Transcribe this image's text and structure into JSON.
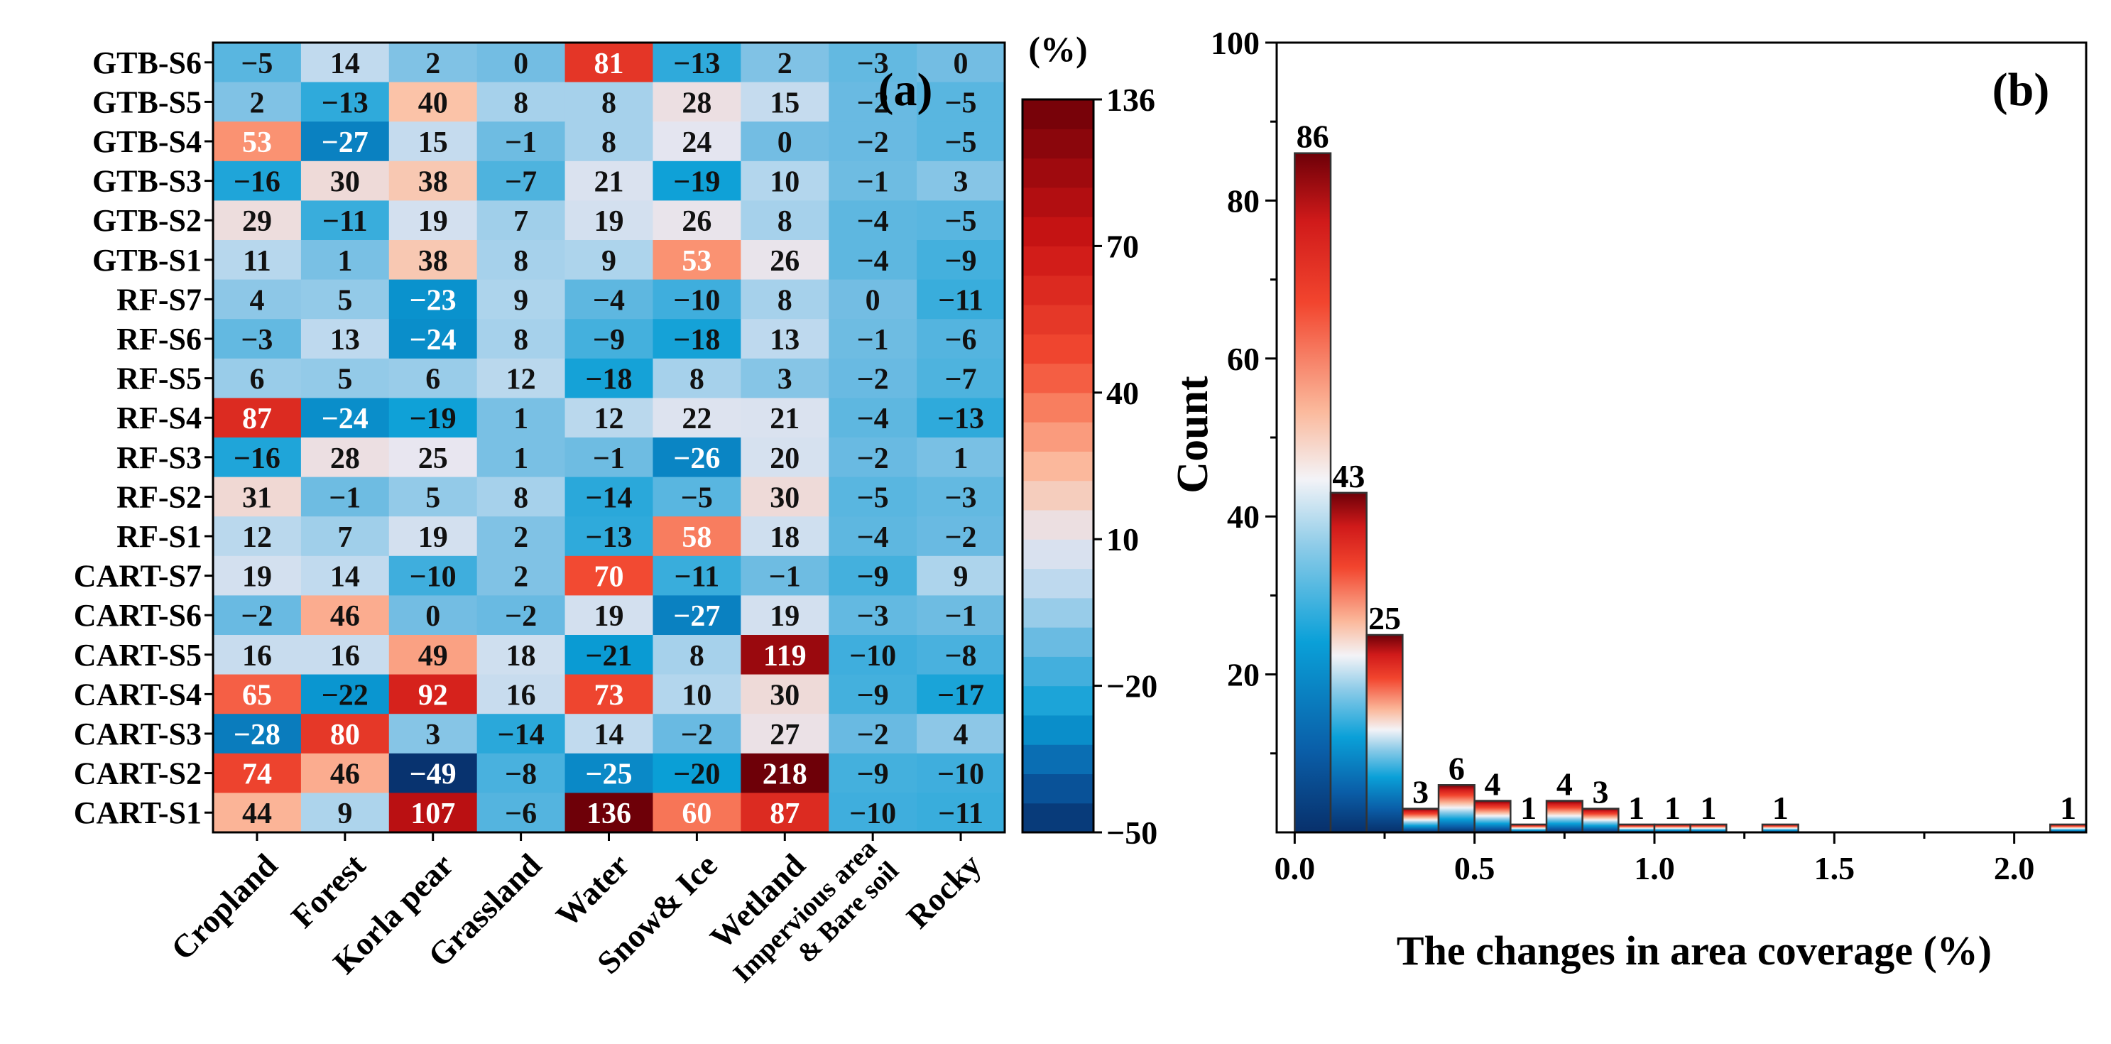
{
  "chart_data": [
    {
      "type": "heatmap",
      "panel_label": "(a)",
      "rows": [
        "GTB-S6",
        "GTB-S5",
        "GTB-S4",
        "GTB-S3",
        "GTB-S2",
        "GTB-S1",
        "RF-S7",
        "RF-S6",
        "RF-S5",
        "RF-S4",
        "RF-S3",
        "RF-S2",
        "RF-S1",
        "CART-S7",
        "CART-S6",
        "CART-S5",
        "CART-S4",
        "CART-S3",
        "CART-S2",
        "CART-S1"
      ],
      "columns": [
        "Cropland",
        "Forest",
        "Korla pear",
        "Grassland",
        "Water",
        "Snow& Ice",
        "Wetland",
        "Impervious area & Bare soil",
        "Rocky"
      ],
      "column_label_lines": [
        [
          "Cropland"
        ],
        [
          "Forest"
        ],
        [
          "Korla pear"
        ],
        [
          "Grassland"
        ],
        [
          "Water"
        ],
        [
          "Snow& Ice"
        ],
        [
          "Wetland"
        ],
        [
          "Impervious area",
          "& Bare soil"
        ],
        [
          "Rocky"
        ]
      ],
      "values": [
        [
          -5,
          14,
          2,
          0,
          81,
          -13,
          2,
          -3,
          0
        ],
        [
          2,
          -13,
          40,
          8,
          8,
          28,
          15,
          -2,
          -5
        ],
        [
          53,
          -27,
          15,
          -1,
          8,
          24,
          0,
          -2,
          -5
        ],
        [
          -16,
          30,
          38,
          -7,
          21,
          -19,
          10,
          -1,
          3
        ],
        [
          29,
          -11,
          19,
          7,
          19,
          26,
          8,
          -4,
          -5
        ],
        [
          11,
          1,
          38,
          8,
          9,
          53,
          26,
          -4,
          -9
        ],
        [
          4,
          5,
          -23,
          9,
          -4,
          -10,
          8,
          0,
          -11
        ],
        [
          -3,
          13,
          -24,
          8,
          -9,
          -18,
          13,
          -1,
          -6
        ],
        [
          6,
          5,
          6,
          12,
          -18,
          8,
          3,
          -2,
          -7
        ],
        [
          87,
          -24,
          -19,
          1,
          12,
          22,
          21,
          -4,
          -13
        ],
        [
          -16,
          28,
          25,
          1,
          -1,
          -26,
          20,
          -2,
          1
        ],
        [
          31,
          -1,
          5,
          8,
          -14,
          -5,
          30,
          -5,
          -3
        ],
        [
          12,
          7,
          19,
          2,
          -13,
          58,
          18,
          -4,
          -2
        ],
        [
          19,
          14,
          -10,
          2,
          70,
          -11,
          -1,
          -9,
          9
        ],
        [
          -2,
          46,
          0,
          -2,
          19,
          -27,
          19,
          -3,
          -1
        ],
        [
          16,
          16,
          49,
          18,
          -21,
          8,
          119,
          -10,
          -8
        ],
        [
          65,
          -22,
          92,
          16,
          73,
          10,
          30,
          -9,
          -17
        ],
        [
          -28,
          80,
          3,
          -14,
          14,
          -2,
          27,
          -2,
          4
        ],
        [
          74,
          46,
          -49,
          -8,
          -25,
          -20,
          218,
          -9,
          -10
        ],
        [
          44,
          9,
          107,
          -6,
          136,
          60,
          87,
          -10,
          -11
        ]
      ],
      "colorbar": {
        "title": "(%)",
        "min": -50,
        "max": 136,
        "ticks": [
          136,
          70,
          40,
          10,
          -20,
          -50
        ],
        "tick_labels": [
          "136",
          "70",
          "40",
          "10",
          "−20",
          "−50"
        ],
        "anchors": [
          {
            "value": -50,
            "color": "#08306b"
          },
          {
            "value": -35,
            "color": "#0a5ea8"
          },
          {
            "value": -20,
            "color": "#0a9fd6"
          },
          {
            "value": 0,
            "color": "#73bde3"
          },
          {
            "value": 10,
            "color": "#b3d6ed"
          },
          {
            "value": 25,
            "color": "#e8e6f0"
          },
          {
            "value": 40,
            "color": "#fbc3a8"
          },
          {
            "value": 55,
            "color": "#fa8a6a"
          },
          {
            "value": 70,
            "color": "#f24a32"
          },
          {
            "value": 100,
            "color": "#cc1414"
          },
          {
            "value": 136,
            "color": "#6e0008"
          }
        ]
      }
    },
    {
      "type": "bar",
      "panel_label": "(b)",
      "xlabel": "The changes in area coverage (%)",
      "ylabel": "Count",
      "xlim": [
        -0.05,
        2.2
      ],
      "ylim": [
        0,
        100
      ],
      "xticks": [
        0.0,
        0.5,
        1.0,
        1.5,
        2.0
      ],
      "xtick_labels": [
        "0.0",
        "0.5",
        "1.0",
        "1.5",
        "2.0"
      ],
      "yticks": [
        20,
        40,
        60,
        80,
        100
      ],
      "ytick_labels": [
        "20",
        "40",
        "60",
        "80",
        "100"
      ],
      "bins": [
        {
          "x0": 0.0,
          "x1": 0.1,
          "count": 86
        },
        {
          "x0": 0.1,
          "x1": 0.2,
          "count": 43
        },
        {
          "x0": 0.2,
          "x1": 0.3,
          "count": 25
        },
        {
          "x0": 0.3,
          "x1": 0.4,
          "count": 3
        },
        {
          "x0": 0.4,
          "x1": 0.5,
          "count": 6
        },
        {
          "x0": 0.5,
          "x1": 0.6,
          "count": 4
        },
        {
          "x0": 0.6,
          "x1": 0.7,
          "count": 1
        },
        {
          "x0": 0.7,
          "x1": 0.8,
          "count": 4
        },
        {
          "x0": 0.8,
          "x1": 0.9,
          "count": 3
        },
        {
          "x0": 0.9,
          "x1": 1.0,
          "count": 1
        },
        {
          "x0": 1.0,
          "x1": 1.1,
          "count": 1
        },
        {
          "x0": 1.1,
          "x1": 1.2,
          "count": 1
        },
        {
          "x0": 1.3,
          "x1": 1.4,
          "count": 1
        },
        {
          "x0": 2.1,
          "x1": 2.2,
          "count": 1
        }
      ],
      "bar_labels": [
        "86",
        "43",
        "25",
        "3",
        "6",
        "4",
        "1",
        "4",
        "3",
        "1",
        "1",
        "1",
        "1",
        "1"
      ]
    }
  ]
}
